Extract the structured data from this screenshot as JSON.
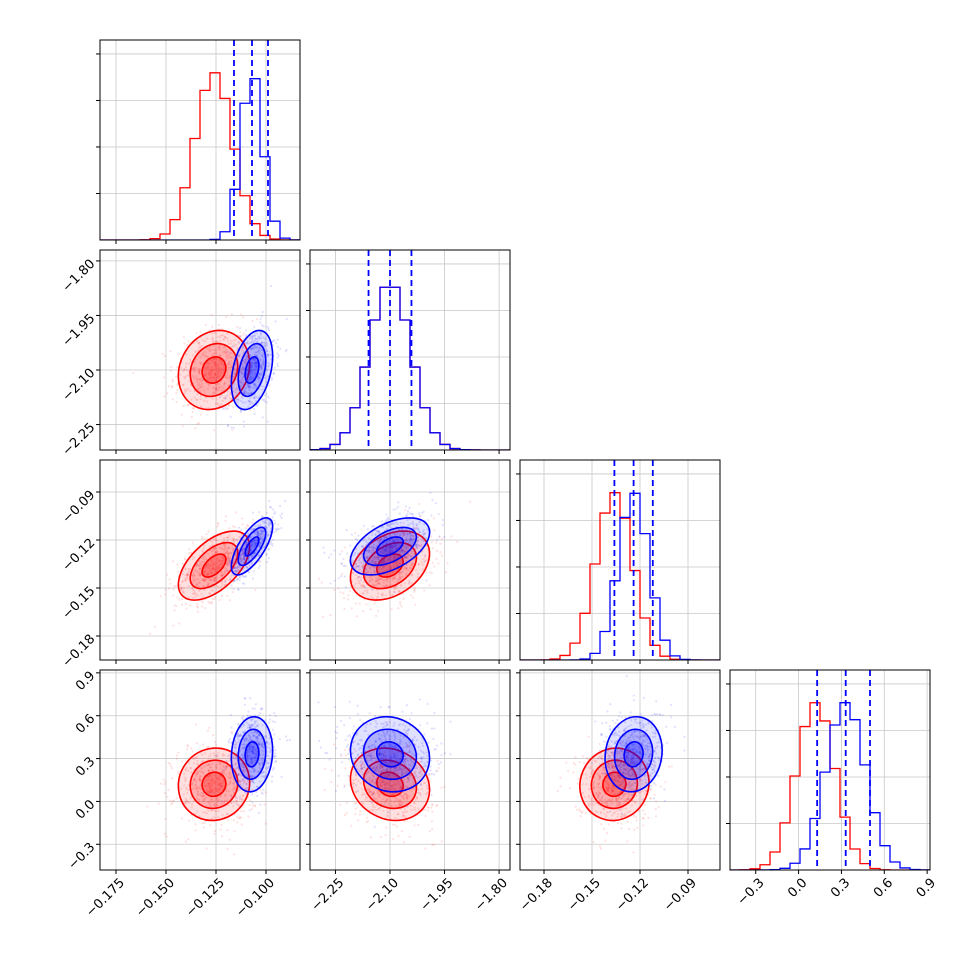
{
  "chart_data": {
    "type": "corner",
    "parameters": [
      {
        "ticks": [
          -0.175,
          -0.15,
          -0.125,
          -0.1
        ],
        "tick_labels": [
          "−0.175",
          "−0.150",
          "−0.125",
          "−0.100"
        ],
        "range": [
          -0.183,
          -0.083
        ]
      },
      {
        "ticks": [
          -2.25,
          -2.1,
          -1.95,
          -1.8
        ],
        "tick_labels": [
          "−2.25",
          "−2.10",
          "−1.95",
          "−1.80"
        ],
        "range": [
          -2.32,
          -1.77
        ]
      },
      {
        "ticks": [
          -0.18,
          -0.15,
          -0.12,
          -0.09
        ],
        "tick_labels": [
          "−0.18",
          "−0.15",
          "−0.12",
          "−0.09"
        ],
        "range": [
          -0.195,
          -0.07
        ]
      },
      {
        "ticks": [
          -0.3,
          0.0,
          0.3,
          0.6,
          0.9
        ],
        "tick_labels": [
          "−0.3",
          "0.0",
          "0.3",
          "0.6",
          "0.9"
        ],
        "range": [
          -0.48,
          0.92
        ]
      }
    ],
    "series": [
      {
        "color": "#ff0000",
        "means": [
          -0.126,
          -2.1,
          -0.136,
          0.12
        ],
        "sigmas": [
          0.0095,
          0.058,
          0.0115,
          0.135
        ],
        "correlations": [
          [
            0,
            1,
            0.15
          ],
          [
            0,
            2,
            0.55
          ],
          [
            1,
            2,
            0.35
          ],
          [
            0,
            3,
            0.05
          ],
          [
            1,
            3,
            -0.15
          ],
          [
            2,
            3,
            0.05
          ]
        ]
      },
      {
        "color": "#0000ff",
        "means": [
          -0.107,
          -2.1,
          -0.124,
          0.33
        ],
        "sigmas": [
          0.0055,
          0.058,
          0.0095,
          0.14
        ],
        "correlations": [
          [
            0,
            1,
            0.35
          ],
          [
            0,
            2,
            0.7
          ],
          [
            1,
            2,
            0.5
          ],
          [
            0,
            3,
            0.1
          ],
          [
            1,
            3,
            -0.1
          ],
          [
            2,
            3,
            0.1
          ]
        ]
      }
    ],
    "quantiles": {
      "color": "#0000ff",
      "values": [
        [
          -0.116,
          -0.107,
          -0.099
        ],
        [
          -2.159,
          -2.1,
          -2.041
        ],
        [
          -0.136,
          -0.124,
          -0.112
        ],
        [
          0.13,
          0.33,
          0.5
        ]
      ]
    },
    "hist_max": [
      0.9,
      0.9,
      0.9,
      0.9
    ],
    "contour_levels": [
      0.5,
      1.0,
      1.5
    ],
    "grid": true
  }
}
